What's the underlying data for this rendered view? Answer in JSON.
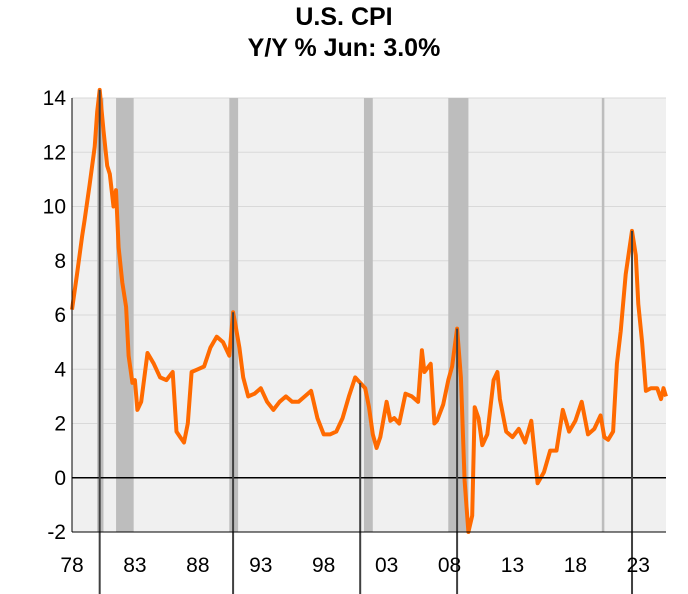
{
  "colors": {
    "background": "#ffffff",
    "plot_area": "#f0f0f0",
    "grid": "#d9d9d9",
    "recession_shade": "#bdbdbd",
    "series_line": "#ff6a00",
    "zero_line": "#000000",
    "peak_marker": "#404040"
  },
  "chart_data": {
    "type": "line",
    "title": "U.S. CPI",
    "subtitle": "Y/Y %  Jun: 3.0%",
    "xlabel": "",
    "ylabel": "",
    "xlim": [
      1978,
      2025.2
    ],
    "ylim": [
      -2,
      14
    ],
    "x_ticks": [
      1978,
      1983,
      1988,
      1993,
      1998,
      2003,
      2008,
      2013,
      2018,
      2023
    ],
    "x_tick_labels": [
      "78",
      "83",
      "88",
      "93",
      "98",
      "03",
      "08",
      "13",
      "18",
      "23"
    ],
    "y_ticks": [
      -2,
      0,
      2,
      4,
      6,
      8,
      10,
      12,
      14
    ],
    "y_tick_labels": [
      "-2",
      "0",
      "2",
      "4",
      "6",
      "8",
      "10",
      "12",
      "14"
    ],
    "grid": "horizontal",
    "legend": "none",
    "recession_bands": [
      [
        1980.0,
        1980.5
      ],
      [
        1981.5,
        1982.9
      ],
      [
        1990.5,
        1991.2
      ],
      [
        2001.2,
        2001.9
      ],
      [
        2007.9,
        2009.5
      ],
      [
        2020.1,
        2020.3
      ]
    ],
    "peak_markers": [
      1980.2,
      1990.8,
      2000.9,
      2008.6,
      2022.5
    ],
    "zero_line": 0,
    "series": [
      {
        "x": [
          1978.0,
          1978.4,
          1978.8,
          1979.0,
          1979.4,
          1979.8,
          1980.0,
          1980.2,
          1980.5,
          1980.8,
          1981.0,
          1981.3,
          1981.5,
          1981.7,
          1982.0,
          1982.3,
          1982.5,
          1982.8,
          1983.0,
          1983.2,
          1983.5,
          1984.0,
          1984.5,
          1985.0,
          1985.5,
          1986.0,
          1986.3,
          1986.6,
          1986.9,
          1987.2,
          1987.5,
          1988.0,
          1988.5,
          1989.0,
          1989.5,
          1990.0,
          1990.5,
          1990.8,
          1991.0,
          1991.3,
          1991.6,
          1992.0,
          1992.5,
          1993.0,
          1993.5,
          1994.0,
          1994.5,
          1995.0,
          1995.5,
          1996.0,
          1996.5,
          1997.0,
          1997.5,
          1998.0,
          1998.5,
          1999.0,
          1999.5,
          2000.0,
          2000.5,
          2000.9,
          2001.3,
          2001.6,
          2001.9,
          2002.2,
          2002.5,
          2003.0,
          2003.3,
          2003.6,
          2004.0,
          2004.5,
          2005.0,
          2005.5,
          2005.8,
          2006.0,
          2006.5,
          2006.8,
          2007.0,
          2007.5,
          2007.9,
          2008.2,
          2008.6,
          2008.9,
          2009.2,
          2009.5,
          2009.8,
          2010.0,
          2010.3,
          2010.6,
          2011.0,
          2011.5,
          2011.8,
          2012.0,
          2012.5,
          2013.0,
          2013.5,
          2014.0,
          2014.5,
          2015.0,
          2015.5,
          2016.0,
          2016.5,
          2017.0,
          2017.5,
          2018.0,
          2018.5,
          2019.0,
          2019.5,
          2020.0,
          2020.3,
          2020.6,
          2021.0,
          2021.3,
          2021.6,
          2022.0,
          2022.5,
          2022.8,
          2023.0,
          2023.3,
          2023.6,
          2024.0,
          2024.5,
          2024.8,
          2025.0,
          2025.2
        ],
        "y": [
          6.2,
          7.5,
          8.9,
          9.5,
          10.8,
          12.2,
          13.5,
          14.3,
          12.8,
          11.5,
          11.2,
          10.0,
          10.6,
          8.5,
          7.2,
          6.3,
          4.5,
          3.5,
          3.6,
          2.5,
          2.8,
          4.6,
          4.2,
          3.7,
          3.6,
          3.9,
          1.7,
          1.5,
          1.3,
          2.0,
          3.9,
          4.0,
          4.1,
          4.8,
          5.2,
          5.0,
          4.5,
          6.1,
          5.6,
          4.8,
          3.7,
          3.0,
          3.1,
          3.3,
          2.8,
          2.5,
          2.8,
          3.0,
          2.8,
          2.8,
          3.0,
          3.2,
          2.2,
          1.6,
          1.6,
          1.7,
          2.2,
          3.0,
          3.7,
          3.5,
          3.3,
          2.6,
          1.6,
          1.1,
          1.5,
          2.8,
          2.1,
          2.2,
          2.0,
          3.1,
          3.0,
          2.8,
          4.7,
          3.9,
          4.2,
          2.0,
          2.1,
          2.7,
          3.6,
          4.1,
          5.5,
          3.7,
          -0.1,
          -2.0,
          -1.4,
          2.6,
          2.2,
          1.2,
          1.6,
          3.6,
          3.9,
          2.9,
          1.7,
          1.5,
          1.8,
          1.3,
          2.1,
          -0.2,
          0.2,
          1.0,
          1.0,
          2.5,
          1.7,
          2.1,
          2.8,
          1.6,
          1.8,
          2.3,
          1.5,
          1.4,
          1.7,
          4.2,
          5.4,
          7.5,
          9.1,
          8.2,
          6.4,
          5.0,
          3.2,
          3.3,
          3.3,
          2.9,
          3.3,
          3.0
        ]
      }
    ]
  }
}
